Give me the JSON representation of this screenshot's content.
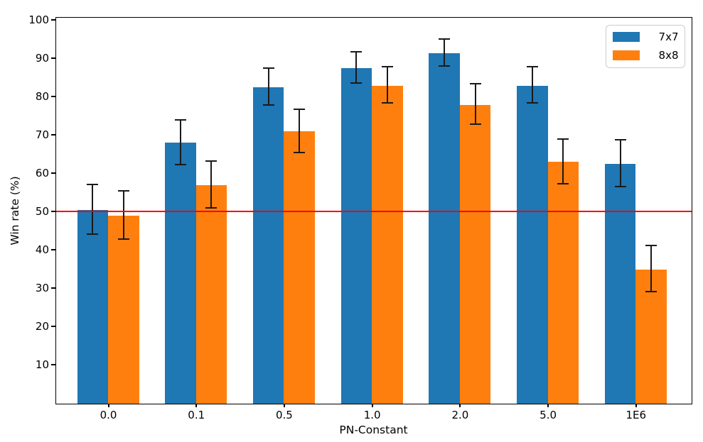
{
  "chart_data": {
    "type": "bar",
    "title": "",
    "xlabel": "PN-Constant",
    "ylabel": "Win rate (%)",
    "categories": [
      "0.0",
      "0.1",
      "0.5",
      "1.0",
      "2.0",
      "5.0",
      "1E6"
    ],
    "series": [
      {
        "name": "7x7",
        "color": "#1f77b4",
        "values": [
          50.5,
          68.0,
          82.5,
          87.5,
          91.5,
          83.0,
          62.5
        ],
        "errors": [
          6.5,
          5.9,
          4.8,
          4.1,
          3.5,
          4.7,
          6.1
        ]
      },
      {
        "name": "8x8",
        "color": "#ff7f0e",
        "values": [
          49.0,
          57.0,
          71.0,
          83.0,
          78.0,
          63.0,
          35.0
        ],
        "errors": [
          6.3,
          6.1,
          5.7,
          4.8,
          5.2,
          5.9,
          6.0
        ]
      }
    ],
    "yticks": [
      10,
      20,
      30,
      40,
      50,
      60,
      70,
      80,
      90,
      100
    ],
    "ylim": [
      0,
      100.6
    ],
    "grid": false,
    "reference_line": {
      "value": 50,
      "color": "#ff0000"
    },
    "error_bar_color": "#1a1a1a",
    "legend_position": "upper right"
  }
}
